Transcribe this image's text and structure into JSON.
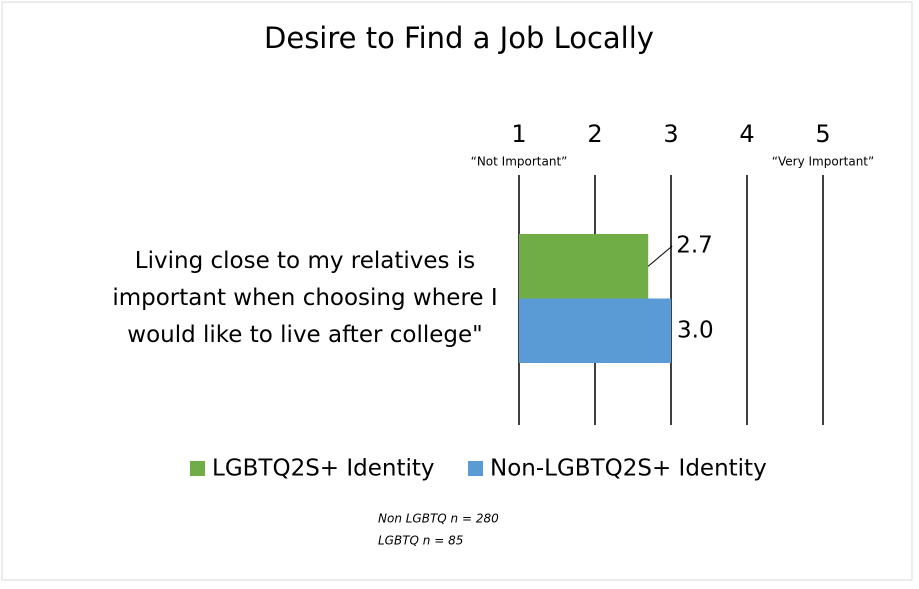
{
  "chart_data": {
    "type": "bar",
    "orientation": "horizontal",
    "title": "Desire to Find a Job Locally",
    "categories": [
      "Living close to my relatives is important when choosing where I would like to live after college\""
    ],
    "series": [
      {
        "name": "LGBTQ2S+ Identity",
        "color": "#70ad47",
        "values": [
          2.7
        ],
        "value_labels": [
          "2.7"
        ]
      },
      {
        "name": "Non-LGBTQ2S+ Identity",
        "color": "#5b9bd5",
        "values": [
          3.0
        ],
        "value_labels": [
          "3.0"
        ]
      }
    ],
    "xlim": [
      1,
      5
    ],
    "xticks": [
      1,
      2,
      3,
      4,
      5
    ],
    "grid": true,
    "annotations": [
      {
        "text": "“Not Important”",
        "x": 1
      },
      {
        "text": "“Very Important”",
        "x": 5
      }
    ],
    "notes": [
      "Non LGBTQ n = 280",
      "LGBTQ n = 85"
    ],
    "legend": "bottom"
  }
}
